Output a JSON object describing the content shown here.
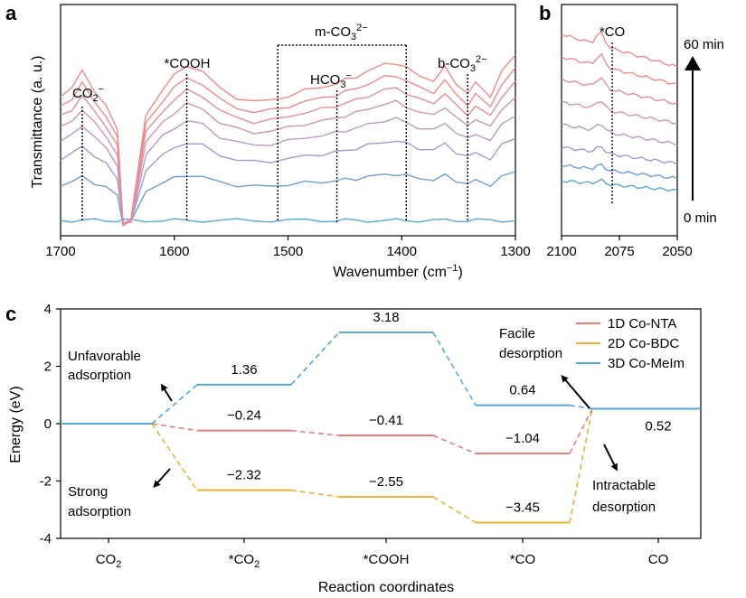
{
  "panels": {
    "a": {
      "label": "a"
    },
    "b": {
      "label": "b"
    },
    "c": {
      "label": "c"
    }
  },
  "colors": {
    "spectra_gradient": [
      "#59a8cf",
      "#6f9fd0",
      "#9b9ecf",
      "#b99ac6",
      "#cf96b4",
      "#e08f9c",
      "#ea8d8d",
      "#ef8a8a"
    ],
    "nta": "#e07f80",
    "bdc": "#e8b23d",
    "melm": "#58a8d6"
  },
  "chart_data": [
    {
      "id": "a",
      "type": "line",
      "ylabel": "Transmittance (a. u.)",
      "xlabel": "Wavenumber (cm",
      "xlabel_sup": "−1",
      "xlabel_tail": ")",
      "xlim": [
        1700,
        1300
      ],
      "xticks": [
        "1700",
        "1600",
        "1500",
        "1400",
        "1300"
      ],
      "series_count": 8,
      "annotations": {
        "co2m": {
          "pre": "CO",
          "sub": "2",
          "sup": "−",
          "x": 1681
        },
        "cooh": {
          "text": "*COOH",
          "x": 1589
        },
        "hco3": {
          "pre": "HCO",
          "sub": "3",
          "sup": "−",
          "x": 1457
        },
        "mco3": {
          "pre": "m-CO",
          "sub": "3",
          "sup": "2−",
          "x_from": 1509,
          "x_to": 1396
        },
        "bco3": {
          "pre": "b-CO",
          "sub": "3",
          "sup": "2−",
          "x": 1342
        }
      }
    },
    {
      "id": "b",
      "type": "line",
      "xlim": [
        2100,
        2050
      ],
      "xticks": [
        "2100",
        "2075",
        "2050"
      ],
      "series_count": 8,
      "annotation": {
        "text": "*CO",
        "x": 2075
      },
      "time_top": "60 min",
      "time_bottom": "0 min"
    },
    {
      "id": "c",
      "type": "line",
      "ylabel": "Energy (eV)",
      "xlabel": "Reaction coordinates",
      "ylim": [
        -4,
        4
      ],
      "yticks": [
        "4",
        "2",
        "0",
        "-2",
        "-4"
      ],
      "categories": [
        {
          "pre": "CO",
          "sub": "2"
        },
        {
          "pre": "*CO",
          "sub": "2"
        },
        {
          "pre": "*COOH",
          "sub": ""
        },
        {
          "pre": "*CO",
          "sub": ""
        },
        {
          "pre": "CO",
          "sub": ""
        }
      ],
      "series": [
        {
          "name": "1D Co-NTA",
          "values": [
            0,
            -0.24,
            -0.41,
            -1.04,
            0.52
          ],
          "labels": [
            "",
            "−0.24",
            "−0.41",
            "−1.04",
            ""
          ]
        },
        {
          "name": "2D Co-BDC",
          "values": [
            0,
            -2.32,
            -2.55,
            -3.45,
            0.52
          ],
          "labels": [
            "",
            "−2.32",
            "−2.55",
            "−3.45",
            ""
          ]
        },
        {
          "name": "3D Co-MeIm",
          "values": [
            0,
            1.36,
            3.18,
            0.64,
            0.52
          ],
          "labels": [
            "",
            "1.36",
            "3.18",
            "0.64",
            "0.52"
          ]
        }
      ],
      "annotations": {
        "unfavorable": [
          "Unfavorable",
          "adsorption"
        ],
        "strong": [
          "Strong",
          "adsorption"
        ],
        "facile": [
          "Facile",
          "desorption"
        ],
        "intractable": [
          "Intractable",
          "desorption"
        ]
      }
    }
  ]
}
